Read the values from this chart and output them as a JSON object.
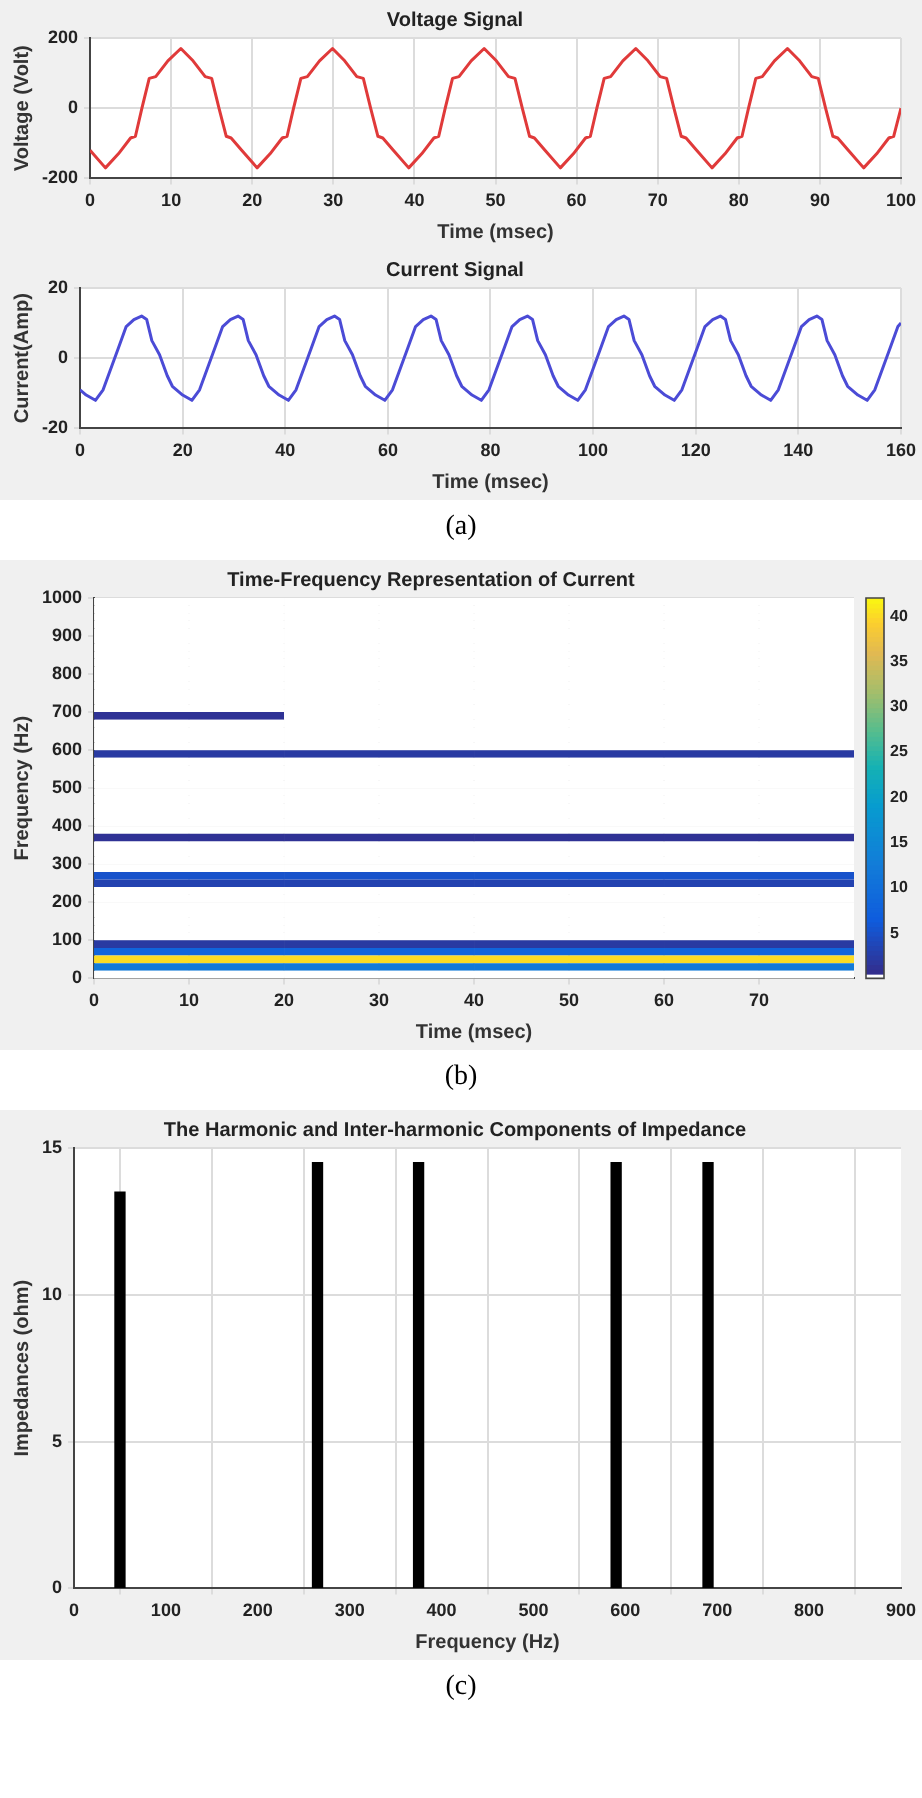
{
  "chart_data": [
    {
      "type": "line",
      "title": "Voltage Signal",
      "xlabel": "Time (msec)",
      "ylabel": "Voltage (Volt)",
      "color": "#e03a3a",
      "marker": "none",
      "grid": true,
      "xlim": [
        0,
        100
      ],
      "xticks": [
        0,
        10,
        20,
        30,
        40,
        50,
        60,
        70,
        80,
        90,
        100
      ],
      "ylim": [
        -200,
        200
      ],
      "yticks": [
        -200,
        0,
        200
      ],
      "x": [
        0,
        1.9,
        3.5,
        5.0,
        5.6,
        6.4,
        7.3,
        8.1,
        9.6,
        11.2,
        12.7,
        14.2,
        15.0,
        15.9,
        16.8,
        17.4,
        18.7,
        20.6,
        22.2,
        23.7,
        24.3,
        25.1,
        26.0,
        26.8,
        28.3,
        29.9,
        31.4,
        32.9,
        33.7,
        34.6,
        35.5,
        36.1,
        37.4,
        39.3,
        40.9,
        42.4,
        43.0,
        43.8,
        44.7,
        45.5,
        47.0,
        48.6,
        50.1,
        51.6,
        52.4,
        53.3,
        54.2,
        54.8,
        56.1,
        58.0,
        59.6,
        61.1,
        61.7,
        62.5,
        63.4,
        64.2,
        65.7,
        67.3,
        68.8,
        70.3,
        71.1,
        72.0,
        72.9,
        73.5,
        74.8,
        76.7,
        78.3,
        79.8,
        80.4,
        81.2,
        82.1,
        82.9,
        84.4,
        86.0,
        87.5,
        89.0,
        89.8,
        90.7,
        91.6,
        92.2,
        93.5,
        95.4,
        97.0,
        98.5,
        99.1,
        100
      ],
      "values": [
        -120,
        -170,
        -130,
        -85,
        -80,
        0,
        85,
        90,
        135,
        170,
        135,
        90,
        85,
        0,
        -80,
        -85,
        -120,
        -170,
        -130,
        -85,
        -80,
        0,
        85,
        90,
        135,
        170,
        135,
        90,
        85,
        0,
        -80,
        -85,
        -120,
        -170,
        -130,
        -85,
        -80,
        0,
        85,
        90,
        135,
        170,
        135,
        90,
        85,
        0,
        -80,
        -85,
        -120,
        -170,
        -130,
        -85,
        -80,
        0,
        85,
        90,
        135,
        170,
        135,
        90,
        85,
        0,
        -80,
        -85,
        -120,
        -170,
        -130,
        -85,
        -80,
        0,
        85,
        90,
        135,
        170,
        135,
        90,
        85,
        0,
        -80,
        -85,
        -120,
        -170,
        -130,
        -85,
        -80,
        0
      ]
    },
    {
      "type": "line",
      "title": "Current Signal",
      "xlabel": "Time (msec)",
      "ylabel": "Current(Amp)",
      "color": "#4b4bd6",
      "marker": "none",
      "grid": true,
      "xlim": [
        0,
        160
      ],
      "xticks": [
        0,
        20,
        40,
        60,
        80,
        100,
        120,
        140,
        160
      ],
      "ylim": [
        -20,
        20
      ],
      "yticks": [
        -20,
        0,
        20
      ],
      "annotations": [
        "(a)"
      ],
      "x": [
        0,
        1.2,
        3,
        4.5,
        6,
        7.5,
        9,
        10.5,
        12,
        13,
        14,
        15.5,
        17,
        18,
        18.8,
        20,
        21.8,
        23.3,
        24.8,
        26.3,
        27.8,
        29.3,
        30.8,
        31.8,
        32.8,
        34.3,
        35.8,
        36.8,
        37.6,
        38.8,
        40.6,
        42.1,
        43.6,
        45.1,
        46.6,
        48.1,
        49.6,
        50.6,
        51.6,
        53.1,
        54.6,
        55.6,
        56.4,
        57.6,
        59.4,
        60.9,
        62.4,
        63.9,
        65.4,
        66.9,
        68.4,
        69.4,
        70.4,
        71.9,
        73.4,
        74.4,
        75.2,
        76.4,
        78.2,
        79.7,
        81.2,
        82.7,
        84.2,
        85.7,
        87.2,
        88.2,
        89.2,
        90.7,
        92.2,
        93.2,
        94,
        95.2,
        97,
        98.5,
        100,
        101.5,
        103,
        104.5,
        106,
        107,
        108,
        109.5,
        111,
        112,
        112.8,
        114,
        115.8,
        117.3,
        118.8,
        120.3,
        121.8,
        123.3,
        124.8,
        125.8,
        126.8,
        128.3,
        129.8,
        130.8,
        131.6,
        132.8,
        134.6,
        136.1,
        137.6,
        139.1,
        140.6,
        142.1,
        143.6,
        144.6,
        145.6,
        147.1,
        148.6,
        149.6,
        150.4,
        151.6,
        153.4,
        154.9,
        156.4,
        157.9,
        159.4,
        160
      ],
      "values": [
        -9,
        -10.5,
        -12,
        -9,
        -3,
        3,
        9,
        11,
        12,
        11,
        5,
        1,
        -5,
        -8,
        -9,
        -10.5,
        -12,
        -9,
        -3,
        3,
        9,
        11,
        12,
        11,
        5,
        1,
        -5,
        -8,
        -9,
        -10.5,
        -12,
        -9,
        -3,
        3,
        9,
        11,
        12,
        11,
        5,
        1,
        -5,
        -8,
        -9,
        -10.5,
        -12,
        -9,
        -3,
        3,
        9,
        11,
        12,
        11,
        5,
        1,
        -5,
        -8,
        -9,
        -10.5,
        -12,
        -9,
        -3,
        3,
        9,
        11,
        12,
        11,
        5,
        1,
        -5,
        -8,
        -9,
        -10.5,
        -12,
        -9,
        -3,
        3,
        9,
        11,
        12,
        11,
        5,
        1,
        -5,
        -8,
        -9,
        -10.5,
        -12,
        -9,
        -3,
        3,
        9,
        11,
        12,
        11,
        5,
        1,
        -5,
        -8,
        -9,
        -10.5,
        -12,
        -9,
        -3,
        3,
        9,
        11,
        12,
        11,
        5,
        1,
        -5,
        -8,
        -9,
        -10.5,
        -12,
        -9,
        -3,
        3,
        9,
        10
      ]
    },
    {
      "type": "heatmap",
      "title": "Time-Frequency Representation of Current",
      "xlabel": "Time (msec)",
      "ylabel": "Frequency (Hz)",
      "grid": true,
      "xlim": [
        0,
        80
      ],
      "xticks": [
        0,
        10,
        20,
        30,
        40,
        50,
        60,
        70
      ],
      "ylim": [
        0,
        1000
      ],
      "yticks": [
        0,
        100,
        200,
        300,
        400,
        500,
        600,
        700,
        800,
        900,
        1000
      ],
      "clim": [
        0,
        42
      ],
      "cticks": [
        5,
        10,
        15,
        20,
        25,
        30,
        35,
        40
      ],
      "annotations": [
        "(b)"
      ],
      "cells": [
        [
          0,
          0,
          0,
          0
        ],
        [
          0,
          0,
          0,
          0
        ],
        [
          0,
          0,
          0,
          0
        ],
        [
          0,
          0,
          0,
          0
        ],
        [
          0,
          0,
          0,
          0
        ],
        [
          0,
          0,
          0,
          0
        ],
        [
          0,
          0,
          0,
          0
        ],
        [
          0,
          0,
          0,
          0
        ],
        [
          0,
          0,
          0,
          0
        ],
        [
          0,
          0,
          0,
          0
        ],
        [
          0,
          0,
          0,
          0
        ],
        [
          0,
          0,
          0,
          0
        ],
        [
          0,
          0,
          0,
          0
        ],
        [
          0,
          0,
          0,
          0
        ],
        [
          0,
          0,
          0,
          0
        ],
        [
          1,
          0,
          0,
          0
        ],
        [
          0,
          0,
          0,
          0
        ],
        [
          0,
          0,
          0,
          0
        ],
        [
          0,
          0,
          0,
          0
        ],
        [
          0,
          0,
          0,
          0
        ],
        [
          2,
          2,
          2,
          2
        ],
        [
          0,
          0,
          0,
          0
        ],
        [
          0,
          0,
          0,
          0
        ],
        [
          0,
          0,
          0,
          0
        ],
        [
          0,
          0,
          0,
          0
        ],
        [
          0,
          0,
          0,
          0
        ],
        [
          0,
          0,
          0,
          0
        ],
        [
          0,
          0,
          0,
          0
        ],
        [
          0,
          0,
          0,
          0
        ],
        [
          0,
          0,
          0,
          0
        ],
        [
          0,
          0,
          0,
          0
        ],
        [
          1,
          1,
          1,
          1
        ],
        [
          0,
          0,
          0,
          0
        ],
        [
          0,
          0,
          0,
          0
        ],
        [
          0,
          0,
          0,
          0
        ],
        [
          0,
          0,
          0,
          0
        ],
        [
          5,
          5,
          5,
          5
        ],
        [
          3,
          3,
          3,
          3
        ],
        [
          0,
          0,
          0,
          0
        ],
        [
          0,
          0,
          0,
          0
        ],
        [
          0,
          0,
          0,
          0
        ],
        [
          0,
          0,
          0,
          0
        ],
        [
          0,
          0,
          0,
          0
        ],
        [
          0,
          0,
          0,
          0
        ],
        [
          0,
          0,
          0,
          0
        ],
        [
          2,
          2,
          2,
          2
        ],
        [
          8,
          8,
          8,
          8
        ],
        [
          40,
          40,
          40,
          40
        ],
        [
          12,
          12,
          12,
          12
        ],
        [
          0,
          0,
          0,
          0
        ]
      ]
    },
    {
      "type": "bar",
      "title": "The Harmonic and Inter-harmonic Components of Impedance",
      "xlabel": "Frequency (Hz)",
      "ylabel": "Impedances (ohm)",
      "color": "#000000",
      "grid": true,
      "xlim": [
        0,
        900
      ],
      "xticks": [
        0,
        100,
        200,
        300,
        400,
        500,
        600,
        700,
        800,
        900
      ],
      "ylim": [
        0,
        15
      ],
      "yticks": [
        0,
        5,
        10,
        15
      ],
      "annotations": [
        "(c)"
      ],
      "x": [
        50,
        265,
        375,
        590,
        690
      ],
      "values": [
        13.5,
        14.5,
        14.5,
        14.5,
        14.5
      ]
    }
  ]
}
